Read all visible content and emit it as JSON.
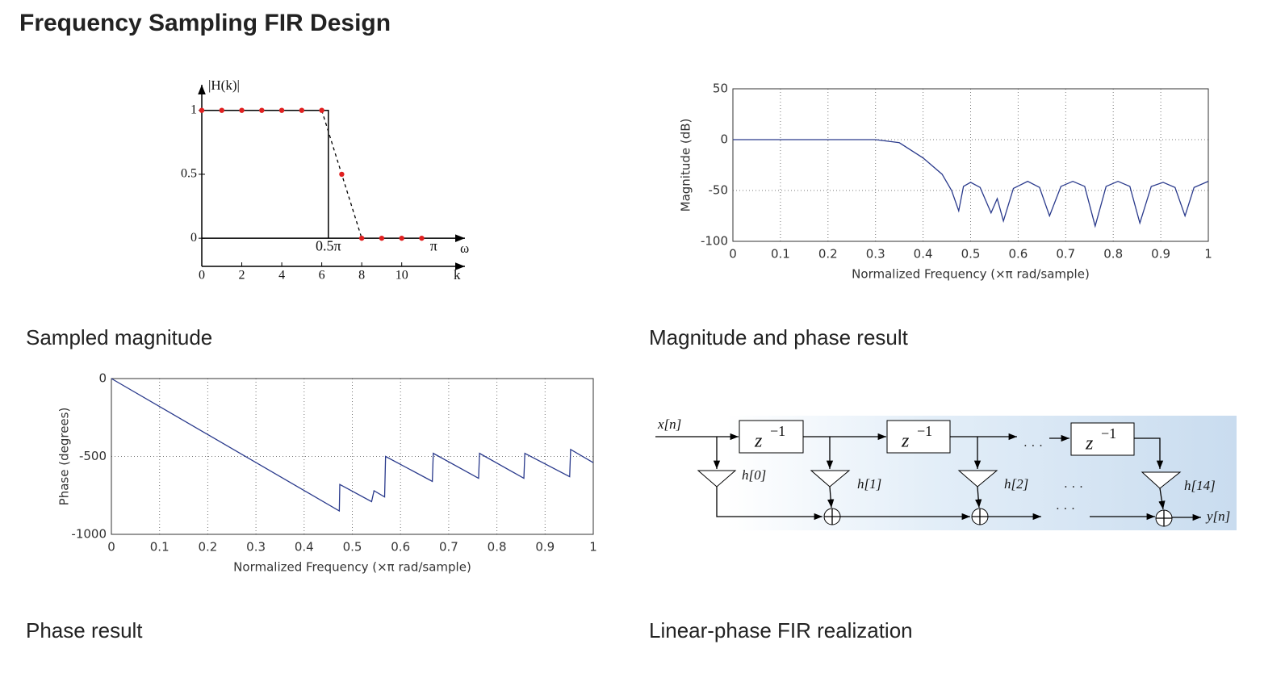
{
  "title": "Frequency Sampling FIR Design",
  "captions": [
    "Sampled magnitude",
    "Magnitude and phase result",
    "Phase result",
    "Linear-phase FIR realization"
  ],
  "chart_data": [
    {
      "type": "scatter",
      "ylabel": "|H(k)|",
      "xlabel": "k",
      "x2label": "ω",
      "x": [
        0,
        1,
        2,
        3,
        4,
        5,
        6,
        7,
        8,
        9,
        10,
        11
      ],
      "values": [
        1,
        1,
        1,
        1,
        1,
        1,
        1,
        0.5,
        0,
        0,
        0,
        0
      ],
      "color": "#e02020",
      "xlim": [
        0,
        13
      ],
      "ylim": [
        -0.22,
        1.2
      ],
      "xticks": [
        0,
        2,
        4,
        6,
        8,
        10
      ],
      "x2ticks": [
        {
          "value": 6.33,
          "label": "0.5π"
        },
        {
          "value": 11.6,
          "label": "π"
        }
      ],
      "yticks": [
        0,
        0.5,
        1
      ],
      "grid": false
    },
    {
      "type": "line",
      "ylabel": "Magnitude (dB)",
      "xlabel": "Normalized Frequency  (×π rad/sample)",
      "x": [
        0,
        0.1,
        0.2,
        0.3,
        0.35,
        0.4,
        0.44,
        0.46,
        0.475,
        0.485,
        0.5,
        0.52,
        0.543,
        0.556,
        0.569,
        0.59,
        0.62,
        0.645,
        0.666,
        0.69,
        0.715,
        0.74,
        0.762,
        0.785,
        0.81,
        0.835,
        0.856,
        0.88,
        0.905,
        0.93,
        0.951,
        0.97,
        1.0
      ],
      "values": [
        0,
        0,
        0,
        0,
        -3,
        -18,
        -34,
        -50,
        -70,
        -46,
        -42,
        -47,
        -72,
        -58,
        -80,
        -48,
        -41,
        -47,
        -75,
        -46,
        -41,
        -46,
        -85,
        -46,
        -41,
        -46,
        -82,
        -46,
        -42,
        -47,
        -75,
        -47,
        -41
      ],
      "color": "#2a3a8c",
      "xlim": [
        0,
        1
      ],
      "ylim": [
        -100,
        50
      ],
      "xticks": [
        0,
        0.1,
        0.2,
        0.3,
        0.4,
        0.5,
        0.6,
        0.7,
        0.8,
        0.9,
        1
      ],
      "yticks": [
        -100,
        -50,
        0,
        50
      ],
      "grid": true
    },
    {
      "type": "line",
      "ylabel": "Phase (degrees)",
      "xlabel": "Normalized Frequency  (×π rad/sample)",
      "x": [
        0,
        0.473,
        0.474,
        0.54,
        0.545,
        0.567,
        0.569,
        0.666,
        0.668,
        0.762,
        0.764,
        0.856,
        0.858,
        0.951,
        0.953,
        1.0
      ],
      "values": [
        0,
        -850,
        -680,
        -790,
        -720,
        -760,
        -500,
        -660,
        -480,
        -640,
        -480,
        -640,
        -480,
        -630,
        -455,
        -540
      ],
      "color": "#2a3a8c",
      "xlim": [
        0,
        1
      ],
      "ylim": [
        -1000,
        0
      ],
      "xticks": [
        0,
        0.1,
        0.2,
        0.3,
        0.4,
        0.5,
        0.6,
        0.7,
        0.8,
        0.9,
        1
      ],
      "yticks": [
        -1000,
        -500,
        0
      ],
      "grid": true
    }
  ],
  "diagram": {
    "input": "x[n]",
    "output": "y[n]",
    "delays": [
      {
        "base": "z",
        "exp": "−1"
      },
      {
        "base": "z",
        "exp": "−1"
      },
      {
        "base": "z",
        "exp": "−1"
      }
    ],
    "coefficients": [
      "h[0]",
      "h[1]",
      "h[2]",
      "h[14]"
    ],
    "ellipsis": "· · ·"
  }
}
